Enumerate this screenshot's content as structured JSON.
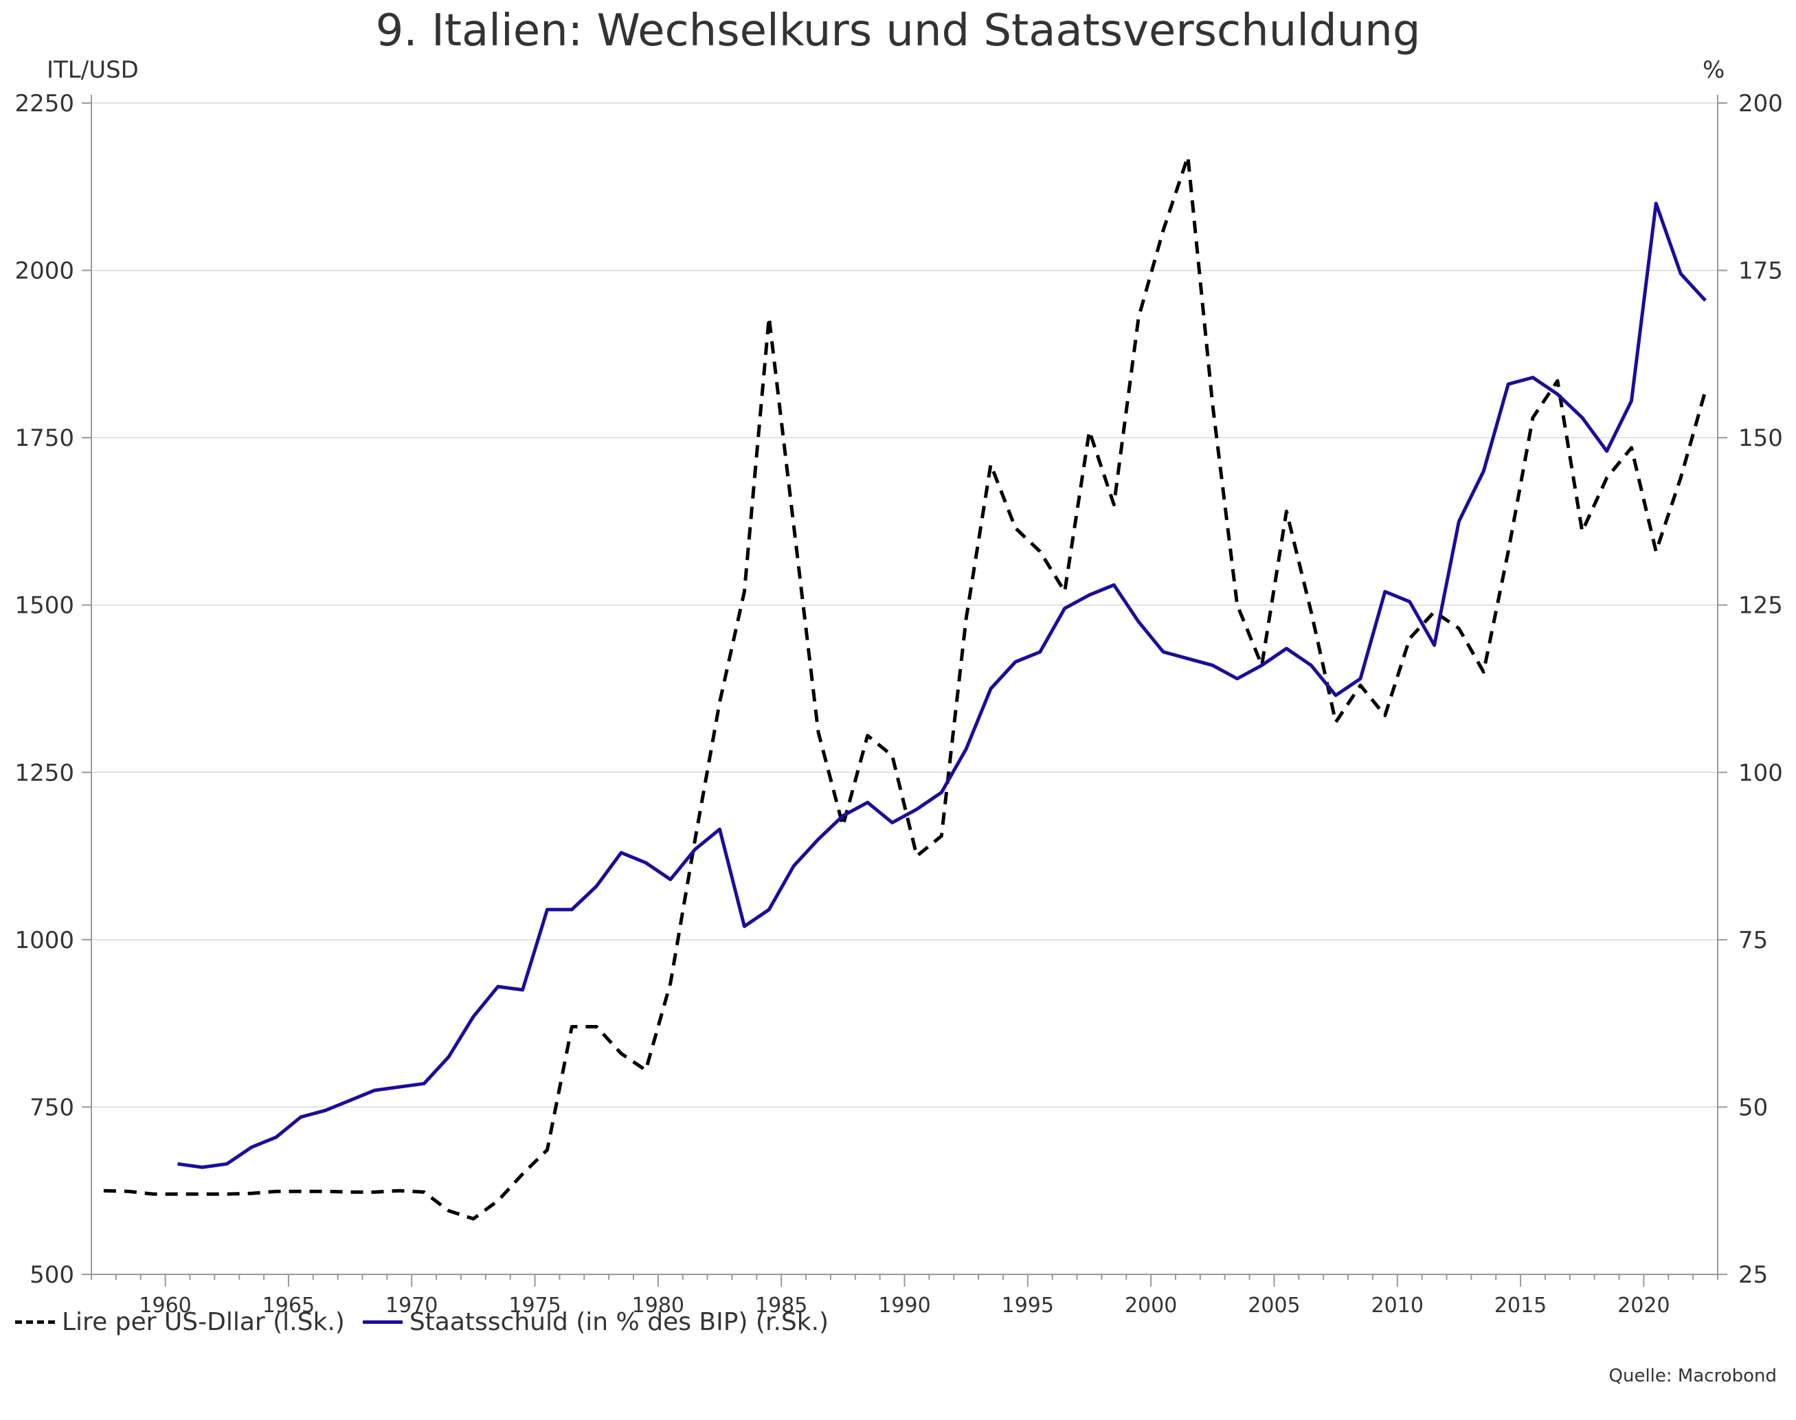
{
  "title": "9. Italien: Wechselkurs und Staatsverschuldung",
  "source": "Quelle: Macrobond",
  "colors": {
    "lire": "#000000",
    "debt": "#1a0d9c",
    "grid": "#d9d9d9",
    "axis": "#999999"
  },
  "chart_data": {
    "type": "line",
    "title": "9. Italien: Wechselkurs und Staatsverschuldung",
    "left_axis": {
      "label": "ITL/USD",
      "range": [
        500,
        2250
      ],
      "ticks": [
        500,
        750,
        1000,
        1250,
        1500,
        1750,
        2000,
        2250
      ]
    },
    "right_axis": {
      "label": "%",
      "range": [
        25,
        200
      ],
      "ticks": [
        25,
        50,
        75,
        100,
        125,
        150,
        175,
        200
      ]
    },
    "x_axis": {
      "range": [
        1957,
        2023
      ],
      "ticks": [
        1960,
        1965,
        1970,
        1975,
        1980,
        1985,
        1990,
        1995,
        2000,
        2005,
        2010,
        2015,
        2020
      ]
    },
    "grid": "horizontal",
    "legend_position": "bottom-left",
    "series": [
      {
        "name": "Lire per US-Dllar (l.Sk.)",
        "axis": "left",
        "style": "dashed",
        "color": "#000000",
        "x": [
          1957.5,
          1958.5,
          1959.5,
          1960.5,
          1961.5,
          1962.5,
          1963.5,
          1964.5,
          1965.5,
          1966.5,
          1967.5,
          1968.5,
          1969.5,
          1970.5,
          1971.5,
          1972.5,
          1973.5,
          1974.5,
          1975.5,
          1976.5,
          1977.5,
          1978.5,
          1979.5,
          1980.5,
          1981.5,
          1982.5,
          1983.5,
          1984.5,
          1985.5,
          1986.5,
          1987.5,
          1988.5,
          1989.5,
          1990.5,
          1991.5,
          1992.5,
          1993.5,
          1994.5,
          1995.5,
          1996.5,
          1997.5,
          1998.5,
          1999.5,
          2000.5,
          2001.5,
          2002.5,
          2003.5,
          2004.5,
          2005.5,
          2006.5,
          2007.5,
          2008.5,
          2009.5,
          2010.5,
          2011.5,
          2012.5,
          2013.5,
          2014.5,
          2015.5,
          2016.5,
          2017.5,
          2018.5,
          2019.5,
          2020.5,
          2021.5,
          2022.5
        ],
        "values": [
          625,
          624,
          620,
          620,
          620,
          620,
          621,
          624,
          624,
          624,
          623,
          623,
          625,
          623,
          595,
          583,
          610,
          650,
          686,
          870,
          870,
          830,
          805,
          935,
          1150,
          1355,
          1520,
          1930,
          1620,
          1310,
          1170,
          1305,
          1275,
          1125,
          1155,
          1480,
          1710,
          1615,
          1580,
          1520,
          1760,
          1650,
          1930,
          2060,
          2170,
          1800,
          1500,
          1410,
          1640,
          1490,
          1325,
          1380,
          1335,
          1450,
          1490,
          1465,
          1400,
          1580,
          1780,
          1835,
          1610,
          1690,
          1735,
          1580,
          1690,
          1820
        ]
      },
      {
        "name": "Staatsschuld (in % des BIP) (r.Sk.)",
        "axis": "right",
        "style": "solid",
        "color": "#1a0d9c",
        "x": [
          1960.5,
          1961.5,
          1962.5,
          1963.5,
          1964.5,
          1965.5,
          1966.5,
          1967.5,
          1968.5,
          1969.5,
          1970.5,
          1971.5,
          1972.5,
          1973.5,
          1974.5,
          1975.5,
          1976.5,
          1977.5,
          1978.5,
          1979.5,
          1980.5,
          1981.5,
          1982.5,
          1983.5,
          1984.5,
          1985.5,
          1986.5,
          1987.5,
          1988.5,
          1989.5,
          1990.5,
          1991.5,
          1992.5,
          1993.5,
          1994.5,
          1995.5,
          1996.5,
          1997.5,
          1998.5,
          1999.5,
          2000.5,
          2001.5,
          2002.5,
          2003.5,
          2004.5,
          2005.5,
          2006.5,
          2007.5,
          2008.5,
          2009.5,
          2010.5,
          2011.5,
          2012.5,
          2013.5,
          2014.5,
          2015.5,
          2016.5,
          2017.5,
          2018.5,
          2019.5,
          2020.5,
          2021.5,
          2022.5
        ],
        "values": [
          41.5,
          41,
          41.5,
          44,
          45.5,
          48.5,
          49.5,
          51,
          52.5,
          53,
          53.5,
          57.5,
          63.5,
          68,
          67.5,
          79.5,
          79.5,
          83,
          88,
          86.5,
          84,
          88.5,
          91.5,
          77,
          79.5,
          86,
          90,
          93.5,
          95.5,
          92.5,
          94.5,
          97,
          103.5,
          112.5,
          116.5,
          118,
          124.5,
          126.5,
          128,
          122.5,
          118,
          117,
          116,
          114,
          116,
          118.5,
          116,
          111.5,
          114,
          127,
          125.5,
          119,
          137.5,
          145,
          158,
          159,
          156.5,
          153,
          148,
          155.5,
          185,
          174.5,
          170.5
        ]
      }
    ]
  }
}
